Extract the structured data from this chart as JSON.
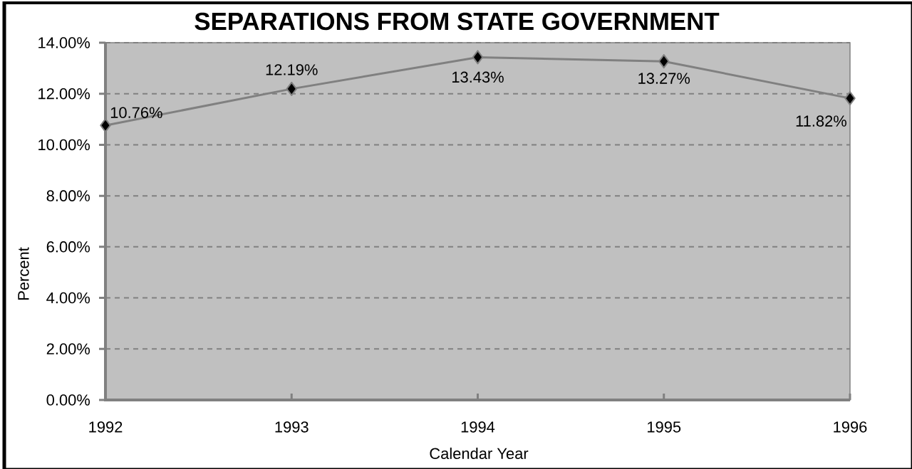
{
  "chart_data": {
    "type": "line",
    "title": "SEPARATIONS FROM STATE GOVERNMENT",
    "xlabel": "Calendar Year",
    "ylabel": "Percent",
    "categories": [
      "1992",
      "1993",
      "1994",
      "1995",
      "1996"
    ],
    "series": [
      {
        "color": "#808080",
        "values": [
          10.76,
          12.19,
          13.43,
          13.27,
          11.82
        ],
        "value_labels": [
          "10.76%",
          "12.19%",
          "13.43%",
          "13.27%",
          "11.82%"
        ]
      }
    ],
    "ylim": [
      0,
      14
    ],
    "yticks": [
      {
        "value": 0,
        "label": "0.00%"
      },
      {
        "value": 2,
        "label": "2.00%"
      },
      {
        "value": 4,
        "label": "4.00%"
      },
      {
        "value": 6,
        "label": "6.00%"
      },
      {
        "value": 8,
        "label": "8.00%"
      },
      {
        "value": 10,
        "label": "10.00%"
      },
      {
        "value": 12,
        "label": "12.00%"
      },
      {
        "value": 14,
        "label": "14.00%"
      }
    ],
    "grid": "y",
    "marker": "diamond",
    "line_style": "solid"
  }
}
